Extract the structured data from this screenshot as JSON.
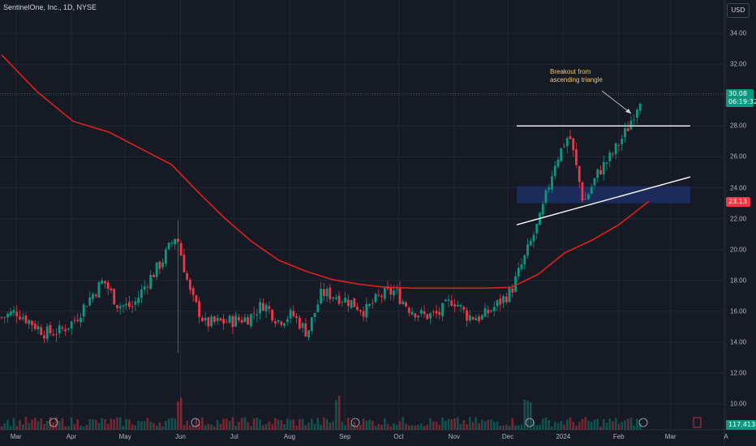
{
  "header": {
    "symbol_title": "SentinelOne, Inc., 1D, NYSE",
    "currency": "USD"
  },
  "price_badge": {
    "price": "30.08",
    "countdown": "06:19:32"
  },
  "sma_badge": {
    "value": "23.13"
  },
  "volume_badge": {
    "value": "117.413K"
  },
  "annotation": {
    "line1": "Breakout from",
    "line2": "ascending triangle"
  },
  "colors": {
    "background": "#161a25",
    "up": "#089981",
    "down": "#f23645",
    "sma": "#e0201b",
    "zone": "#1c2f66",
    "annotation": "#f2c66d"
  },
  "chart_data": {
    "type": "candlestick",
    "title": "SentinelOne, Inc., 1D, NYSE",
    "ylim": [
      9,
      35
    ],
    "y_ticks": [
      "34.00",
      "32.00",
      "30.00",
      "28.00",
      "26.00",
      "24.00",
      "22.00",
      "20.00",
      "18.00",
      "16.00",
      "14.00",
      "12.00",
      "10.00"
    ],
    "y_tick_values": [
      34,
      32,
      30,
      28,
      26,
      24,
      22,
      20,
      18,
      16,
      14,
      12,
      10
    ],
    "x_ticks": [
      {
        "label": "Mar",
        "day": 8
      },
      {
        "label": "Apr",
        "day": 39
      },
      {
        "label": "May",
        "day": 69
      },
      {
        "label": "Jun",
        "day": 100
      },
      {
        "label": "Jul",
        "day": 130
      },
      {
        "label": "Aug",
        "day": 161
      },
      {
        "label": "Sep",
        "day": 192
      },
      {
        "label": "Oct",
        "day": 222
      },
      {
        "label": "Nov",
        "day": 253
      },
      {
        "label": "Dec",
        "day": 283
      },
      {
        "label": "2024",
        "day": 314
      },
      {
        "label": "Feb",
        "day": 345
      },
      {
        "label": "Mar",
        "day": 374
      },
      {
        "label": "A",
        "day": 405
      }
    ],
    "closes_weekly": [
      15.6,
      16.0,
      15.3,
      14.6,
      14.7,
      15.4,
      16.8,
      18.0,
      16.4,
      16.3,
      17.9,
      19.2,
      21.0,
      17.0,
      15.2,
      15.3,
      15.4,
      15.6,
      16.5,
      15.4,
      15.8,
      14.6,
      17.2,
      17.0,
      16.6,
      16.0,
      17.0,
      17.3,
      16.2,
      15.7,
      15.8,
      16.8,
      15.7,
      15.6,
      16.4,
      17.3,
      19.6,
      22.0,
      25.6,
      27.5,
      23.0,
      25.0,
      26.2,
      27.8,
      30.1
    ],
    "sma": [
      {
        "day": 0,
        "value": 32.6
      },
      {
        "day": 20,
        "value": 30.2
      },
      {
        "day": 40,
        "value": 28.3
      },
      {
        "day": 60,
        "value": 27.6
      },
      {
        "day": 75,
        "value": 26.7
      },
      {
        "day": 95,
        "value": 25.5
      },
      {
        "day": 110,
        "value": 23.7
      },
      {
        "day": 125,
        "value": 22.0
      },
      {
        "day": 140,
        "value": 20.5
      },
      {
        "day": 155,
        "value": 19.3
      },
      {
        "day": 170,
        "value": 18.6
      },
      {
        "day": 185,
        "value": 18.05
      },
      {
        "day": 200,
        "value": 17.75
      },
      {
        "day": 215,
        "value": 17.55
      },
      {
        "day": 230,
        "value": 17.5
      },
      {
        "day": 250,
        "value": 17.5
      },
      {
        "day": 270,
        "value": 17.5
      },
      {
        "day": 285,
        "value": 17.55
      },
      {
        "day": 300,
        "value": 18.4
      },
      {
        "day": 315,
        "value": 19.8
      },
      {
        "day": 330,
        "value": 20.6
      },
      {
        "day": 345,
        "value": 21.6
      },
      {
        "day": 355,
        "value": 22.5
      },
      {
        "day": 362,
        "value": 23.13
      }
    ],
    "drawings": {
      "resistance_line": {
        "from": {
          "day": 288,
          "value": 28.0
        },
        "to": {
          "day": 385,
          "value": 28.0
        }
      },
      "support_line": {
        "from": {
          "day": 288,
          "value": 21.6
        },
        "to": {
          "day": 385,
          "value": 24.7
        }
      },
      "zone": {
        "from_day": 288,
        "to_day": 385,
        "low": 23.0,
        "high": 24.1
      }
    },
    "last_price": 30.08,
    "sma_last": 23.13,
    "volume_last": "117.413K"
  }
}
